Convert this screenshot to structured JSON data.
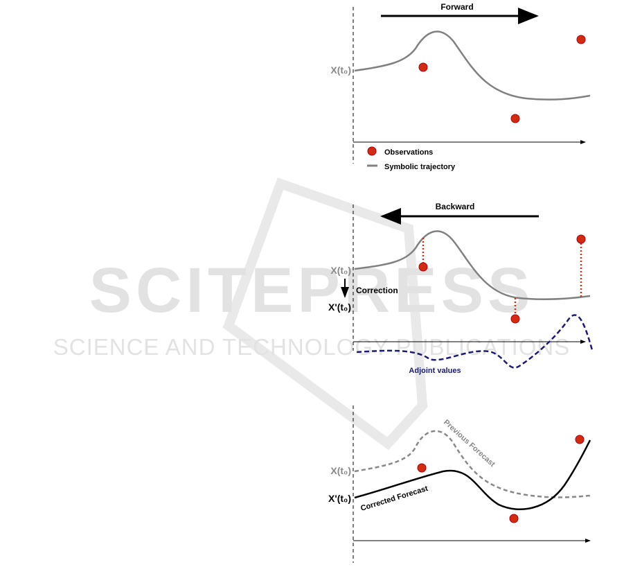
{
  "watermark": {
    "title": "SCITEPRESS",
    "subtitle": "SCIENCE AND TECHNOLOGY PUBLICATIONS"
  },
  "panels": [
    {
      "direction": "Forward",
      "x_label": "X(t₀)",
      "legend": [
        "Observations",
        "Symbolic trajectory"
      ]
    },
    {
      "direction": "Backward",
      "x_label": "X(t₀)",
      "correction": "Correction",
      "corrected_label": "X'(t₀)",
      "adjoint": "Adjoint values"
    },
    {
      "x_label": "X(t₀)",
      "corrected_label": "X'(t₀)",
      "previous": "Previous Forecast",
      "corrected": "Corrected Forecast"
    }
  ]
}
